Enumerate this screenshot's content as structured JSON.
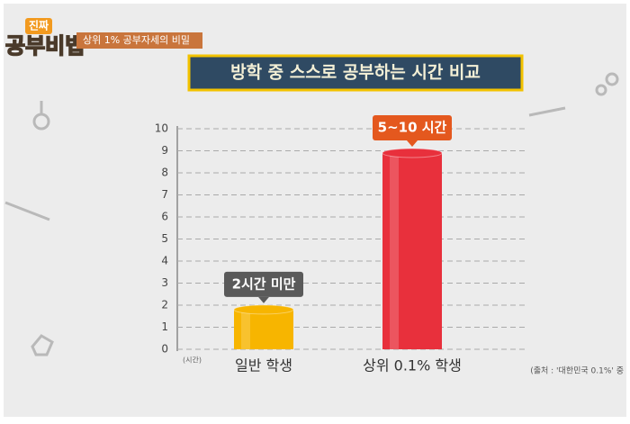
{
  "chart_data": {
    "type": "bar",
    "logo": [
      "진짜",
      "공부비법"
    ],
    "subtitle": "상위 1% 공부자세의 비밀",
    "title": "방학 중 스스로 공부하는 시간 비교",
    "y_unit": "(시간)",
    "categories": [
      "일반 학생",
      "상위 0.1% 학생"
    ],
    "values": [
      1.8,
      8.9
    ],
    "colors": [
      "#f7b500",
      "#e8303c"
    ],
    "annotations": [
      "2시간 미만",
      "5~10 시간"
    ],
    "annotation_colors": [
      "#5a5a5a",
      "#e4581e"
    ],
    "ylim": [
      0,
      10
    ],
    "yticks": [
      0,
      1,
      2,
      3,
      4,
      5,
      6,
      7,
      8,
      9,
      10
    ],
    "grid": true,
    "source": "(출처 : '대한민국 0.1%' 중"
  }
}
